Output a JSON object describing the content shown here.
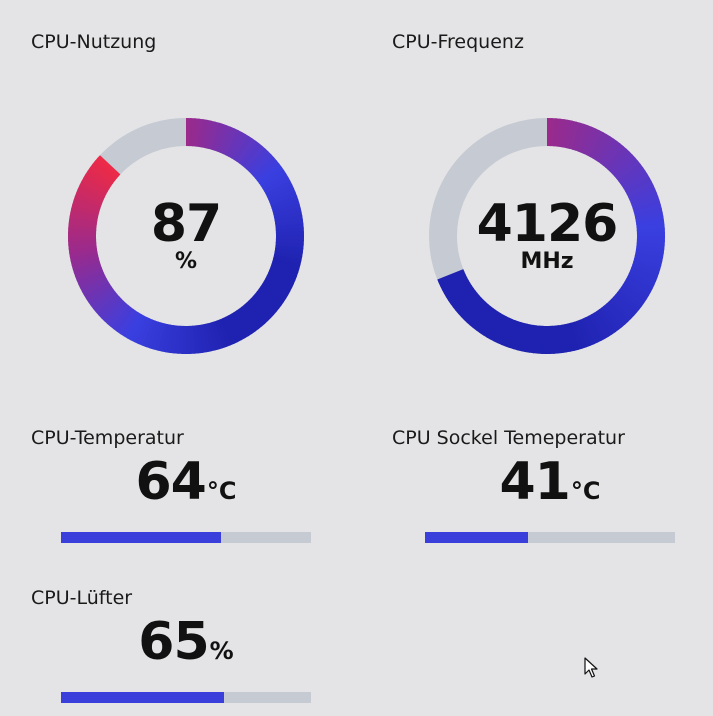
{
  "cpu_usage": {
    "label": "CPU-Nutzung",
    "value": "87",
    "unit": "%",
    "fraction": 0.87,
    "colors": {
      "start": "#9a2a8c",
      "mid": "#3a3fe0",
      "end": "#1f22b0",
      "high": "#f02a44",
      "track": "#c5cad3"
    }
  },
  "cpu_frequency": {
    "label": "CPU-Frequenz",
    "value": "4126",
    "unit": "MHz",
    "fraction": 0.69,
    "colors": {
      "start": "#9a2a8c",
      "mid": "#3a3fe0",
      "end": "#1f22b0",
      "track": "#c5cad3"
    }
  },
  "cpu_temperature": {
    "label": "CPU-Temperatur",
    "value": "64",
    "unit": "°C",
    "fraction": 0.64
  },
  "cpu_socket_temperature": {
    "label": "CPU Sockel Temeperatur",
    "value": "41",
    "unit": "°C",
    "fraction": 0.41
  },
  "cpu_fan": {
    "label": "CPU-Lüfter",
    "value": "65",
    "unit": "%",
    "fraction": 0.65
  },
  "colors": {
    "background": "#e4e4e6",
    "bar_fill": "#3a3fdc",
    "bar_track": "#c5cad3"
  }
}
